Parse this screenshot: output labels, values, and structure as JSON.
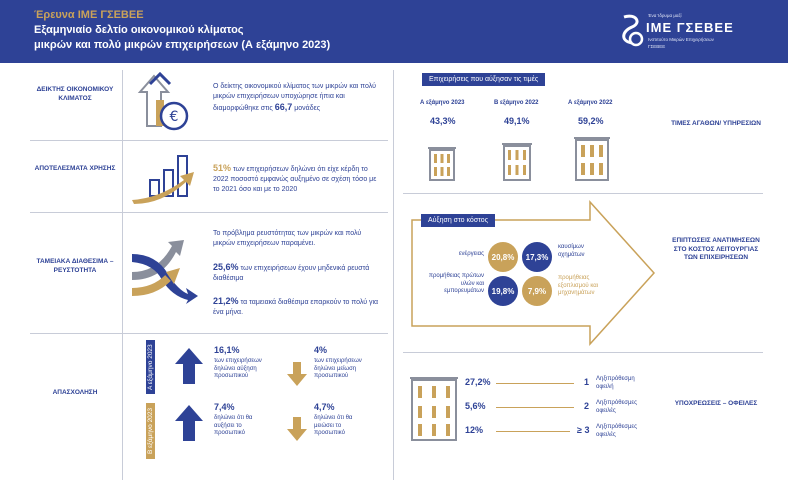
{
  "header": {
    "subtitle": "Έρευνα ΙΜΕ ΓΣΕΒΕΕ",
    "title_line1": "Εξαμηνιαίο δελτίο οικονομικού κλίματος",
    "title_line2": "μικρών και πολύ μικρών επιχειρήσεων (Α εξάμηνο 2023)"
  },
  "logo": {
    "top_text": "Ένα Ίδρυμα μαζί",
    "name": "ΙΜΕ ΓΣΕΒΕΕ",
    "line1": "Ινστιτούτο Μικρών Επιχειρήσεων",
    "line2": "ΓΣΕΒΕΕ"
  },
  "left": {
    "climate": {
      "label": "ΔΕΙΚΤΗΣ ΟΙΚΟΝΟΜΙΚΟΥ ΚΛΙΜΑΤΟΣ",
      "text_pre": "Ο δείκτης οικονομικού κλίματος των μικρών και πολύ μικρών επιχειρήσεων υποχώρησε ήπια και διαμορφώθηκε στις",
      "value": "66,7",
      "text_post": "μονάδες"
    },
    "results": {
      "label": "ΑΠΟΤΕΛΕΣΜΑΤΑ ΧΡΗΣΗΣ",
      "value": "51%",
      "text": "των επιχειρήσεων δηλώνει ότι είχε κέρδη το 2022 ποσοστό εμφανώς αυξημένο σε σχέση τόσο με το 2021 όσο και με το 2020"
    },
    "liquidity": {
      "label": "ΤΑΜΕΙΑΚΑ ΔΙΑΘΕΣΙΜΑ – ΡΕΥΣΤΟΤΗΤΑ",
      "intro": "Το πρόβλημα ρευστότητας των μικρών και πολύ μικρών επιχειρήσεων παραμένει.",
      "v1": "25,6%",
      "t1": "των επιχειρήσεων έχουν μηδενικά ρευστά διαθέσιμα",
      "v2": "21,2%",
      "t2": "τα ταμειακά διαθέσιμα επαρκούν το πολύ για ένα μήνα."
    },
    "employment": {
      "label": "ΑΠΑΣΧΟΛΗΣΗ",
      "period1": "Α εξάμηνο 2023",
      "period2": "Β εξάμηνο 2023",
      "up1": "16,1%",
      "up1_text": "των επιχειρήσεων δηλώνει αύξηση προσωπικού",
      "down1": "4%",
      "down1_text": "των επιχειρήσεων δηλώνει μείωση προσωπικού",
      "up2": "7,4%",
      "up2_text": "δηλώνει ότι θα αυξήσει το προσωπικό",
      "down2": "4,7%",
      "down2_text": "δηλώνει ότι θα μειώσει το προσωπικό"
    }
  },
  "right": {
    "prices": {
      "pill": "Επιχειρήσεις που αύξησαν τις τιμές",
      "side_label": "ΤΙΜΕΣ ΑΓΑΘΩΝ/ ΥΠΗΡΕΣΙΩΝ",
      "items": [
        {
          "period": "Α εξάμηνο 2023",
          "value": "43,3%"
        },
        {
          "period": "Β εξάμηνο 2022",
          "value": "49,1%"
        },
        {
          "period": "Α εξάμηνο 2022",
          "value": "59,2%"
        }
      ]
    },
    "costs": {
      "pill": "Αύξηση στο κόστος",
      "side_label": "ΕΠΙΠΤΩΣΕΙΣ ΑΝΑΤΙΜΗΣΕΩΝ ΣΤΟ ΚΟΣΤΟΣ ΛΕΙΤΟΥΡΓΙΑΣ ΤΩΝ ΕΠΙΧΕΙΡΗΣΕΩΝ",
      "energy_label": "ενέργειας",
      "energy": "20,8%",
      "fuel": "17,3%",
      "fuel_label": "καυσίμων οχημάτων",
      "raw_label": "προμήθειας πρώτων υλών και εμπορευμάτων",
      "raw": "19,8%",
      "equip": "7,9%",
      "equip_label": "προμήθειας εξοπλισμού και μηχανημάτων"
    },
    "debts": {
      "side_label": "ΥΠΟΧΡΕΩΣΕΙΣ – ΟΦΕΙΛΕΣ",
      "rows": [
        {
          "pct": "27,2%",
          "n": "1",
          "label": "Ληξιπρόθεσμη οφειλή"
        },
        {
          "pct": "5,6%",
          "n": "2",
          "label": "Ληξιπρόθεσμες οφειλές"
        },
        {
          "pct": "12%",
          "n": "≥ 3",
          "label": "Ληξιπρόθεσμες οφειλές"
        }
      ]
    }
  },
  "colors": {
    "navy": "#2e4296",
    "gold": "#c9a25a",
    "gray": "#8a8f9c"
  }
}
